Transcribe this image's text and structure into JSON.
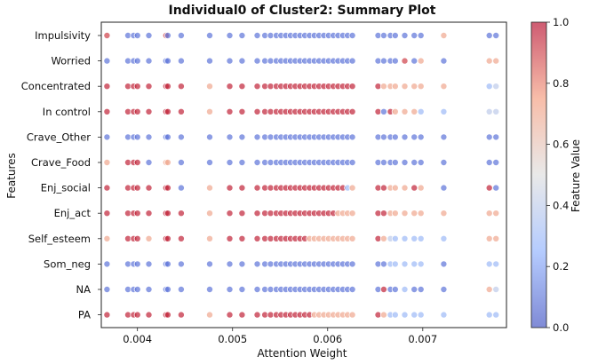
{
  "chart_data": {
    "type": "scatter",
    "title": "Individual0 of Cluster2: Summary Plot",
    "xlabel": "Attention Weight",
    "ylabel": "Features",
    "xlim": [
      0.00362,
      0.00788
    ],
    "xticks": [
      0.004,
      0.005,
      0.006,
      0.007
    ],
    "xtick_labels": [
      "0.004",
      "0.005",
      "0.006",
      "0.007"
    ],
    "colorbar": {
      "label": "Feature Value",
      "cmap": "coolwarm",
      "range": [
        0.0,
        1.0
      ],
      "ticks": [
        0.0,
        0.2,
        0.4,
        0.6,
        0.8,
        1.0
      ],
      "tick_labels": [
        "0.0",
        "0.2",
        "0.4",
        "0.6",
        "0.8",
        "1.0"
      ]
    },
    "features": [
      "Impulsivity",
      "Worried",
      "Concentrated",
      "In control",
      "Crave_Other",
      "Crave_Food",
      "Enj_social",
      "Enj_act",
      "Self_esteem",
      "Som_neg",
      "NA",
      "PA"
    ],
    "cluster_weights": [
      0.00368,
      0.0039,
      0.00396,
      0.004,
      0.00412,
      0.0043,
      0.00432,
      0.00446,
      0.00476,
      0.00497,
      0.0051,
      0.00526,
      0.00534,
      0.0054,
      0.00546,
      0.00551,
      0.00556,
      0.00561,
      0.00566,
      0.00571,
      0.00576,
      0.00581,
      0.00586,
      0.00591,
      0.00596,
      0.00601,
      0.00606,
      0.00611,
      0.00616,
      0.00621,
      0.00626,
      0.00653,
      0.00659,
      0.00666,
      0.00671,
      0.00681,
      0.00691,
      0.00698,
      0.00722,
      0.0077,
      0.00777
    ],
    "series": [
      {
        "feature": "Impulsivity",
        "values": [
          0.9,
          0.1,
          0.1,
          0.1,
          0.1,
          0.9,
          0.1,
          0.1,
          0.1,
          0.1,
          0.1,
          0.1,
          0.1,
          0.1,
          0.1,
          0.1,
          0.1,
          0.1,
          0.1,
          0.1,
          0.1,
          0.1,
          0.1,
          0.1,
          0.1,
          0.1,
          0.1,
          0.1,
          0.1,
          0.1,
          0.1,
          0.1,
          0.1,
          0.1,
          0.1,
          0.1,
          0.1,
          0.1,
          0.7,
          0.1,
          0.1
        ]
      },
      {
        "feature": "Worried",
        "values": [
          0.1,
          0.1,
          0.1,
          0.1,
          0.1,
          0.1,
          0.1,
          0.1,
          0.1,
          0.1,
          0.1,
          0.1,
          0.1,
          0.1,
          0.1,
          0.1,
          0.1,
          0.1,
          0.1,
          0.1,
          0.1,
          0.1,
          0.1,
          0.1,
          0.1,
          0.1,
          0.1,
          0.1,
          0.1,
          0.1,
          0.1,
          0.1,
          0.1,
          0.1,
          0.1,
          0.9,
          0.1,
          0.7,
          0.1,
          0.7,
          0.7
        ]
      },
      {
        "feature": "Concentrated",
        "values": [
          0.95,
          0.95,
          0.95,
          0.95,
          0.95,
          0.95,
          0.95,
          0.95,
          0.7,
          0.95,
          0.95,
          0.95,
          0.95,
          0.95,
          0.95,
          0.95,
          0.95,
          0.95,
          0.95,
          0.95,
          0.95,
          0.95,
          0.95,
          0.95,
          0.95,
          0.95,
          0.95,
          0.95,
          0.95,
          0.95,
          0.95,
          0.95,
          0.7,
          0.7,
          0.7,
          0.7,
          0.7,
          0.7,
          0.7,
          0.3,
          0.4
        ]
      },
      {
        "feature": "In control",
        "values": [
          0.95,
          0.95,
          0.95,
          0.95,
          0.95,
          0.95,
          0.95,
          0.95,
          0.7,
          0.95,
          0.95,
          0.95,
          0.95,
          0.95,
          0.95,
          0.95,
          0.95,
          0.95,
          0.95,
          0.95,
          0.95,
          0.95,
          0.95,
          0.95,
          0.95,
          0.95,
          0.95,
          0.95,
          0.95,
          0.95,
          0.95,
          0.95,
          0.1,
          0.95,
          0.7,
          0.7,
          0.7,
          0.3,
          0.3,
          0.4,
          0.4
        ]
      },
      {
        "feature": "Crave_Other",
        "values": [
          0.1,
          0.1,
          0.1,
          0.1,
          0.1,
          0.1,
          0.1,
          0.1,
          0.1,
          0.1,
          0.1,
          0.1,
          0.1,
          0.1,
          0.1,
          0.1,
          0.1,
          0.1,
          0.1,
          0.1,
          0.1,
          0.1,
          0.1,
          0.1,
          0.1,
          0.1,
          0.1,
          0.1,
          0.1,
          0.1,
          0.1,
          0.1,
          0.1,
          0.1,
          0.1,
          0.1,
          0.1,
          0.1,
          0.1,
          0.1,
          0.1
        ]
      },
      {
        "feature": "Crave_Food",
        "values": [
          0.7,
          0.95,
          0.95,
          0.95,
          0.1,
          0.7,
          0.7,
          0.1,
          0.1,
          0.1,
          0.1,
          0.1,
          0.1,
          0.1,
          0.1,
          0.1,
          0.1,
          0.1,
          0.1,
          0.1,
          0.1,
          0.1,
          0.1,
          0.1,
          0.1,
          0.1,
          0.1,
          0.1,
          0.1,
          0.1,
          0.1,
          0.1,
          0.1,
          0.1,
          0.1,
          0.1,
          0.1,
          0.1,
          0.1,
          0.1,
          0.1
        ]
      },
      {
        "feature": "Enj_social",
        "values": [
          0.95,
          0.95,
          0.95,
          0.95,
          0.95,
          0.95,
          0.95,
          0.1,
          0.7,
          0.95,
          0.95,
          0.95,
          0.95,
          0.95,
          0.95,
          0.95,
          0.95,
          0.95,
          0.95,
          0.95,
          0.95,
          0.95,
          0.95,
          0.95,
          0.95,
          0.95,
          0.95,
          0.95,
          0.95,
          0.3,
          0.7,
          0.95,
          0.95,
          0.7,
          0.7,
          0.7,
          0.95,
          0.7,
          0.1,
          0.95,
          0.1
        ]
      },
      {
        "feature": "Enj_act",
        "values": [
          0.95,
          0.95,
          0.95,
          0.95,
          0.95,
          0.95,
          0.95,
          0.95,
          0.7,
          0.95,
          0.95,
          0.95,
          0.95,
          0.95,
          0.95,
          0.95,
          0.95,
          0.95,
          0.95,
          0.95,
          0.95,
          0.95,
          0.95,
          0.95,
          0.95,
          0.95,
          0.95,
          0.7,
          0.7,
          0.7,
          0.7,
          0.95,
          0.95,
          0.7,
          0.7,
          0.7,
          0.7,
          0.7,
          0.7,
          0.7,
          0.7
        ]
      },
      {
        "feature": "Self_esteem",
        "values": [
          0.7,
          0.95,
          0.95,
          0.95,
          0.7,
          0.95,
          0.95,
          0.95,
          0.7,
          0.95,
          0.95,
          0.95,
          0.95,
          0.95,
          0.95,
          0.95,
          0.95,
          0.95,
          0.95,
          0.95,
          0.95,
          0.7,
          0.7,
          0.7,
          0.7,
          0.7,
          0.7,
          0.7,
          0.7,
          0.7,
          0.7,
          0.95,
          0.7,
          0.4,
          0.3,
          0.3,
          0.3,
          0.3,
          0.3,
          0.7,
          0.7
        ]
      },
      {
        "feature": "Som_neg",
        "values": [
          0.1,
          0.1,
          0.1,
          0.1,
          0.1,
          0.1,
          0.1,
          0.1,
          0.1,
          0.1,
          0.1,
          0.1,
          0.1,
          0.1,
          0.1,
          0.1,
          0.1,
          0.1,
          0.1,
          0.1,
          0.1,
          0.1,
          0.1,
          0.1,
          0.1,
          0.1,
          0.1,
          0.1,
          0.1,
          0.1,
          0.1,
          0.1,
          0.1,
          0.3,
          0.3,
          0.3,
          0.3,
          0.3,
          0.1,
          0.3,
          0.3
        ]
      },
      {
        "feature": "NA",
        "values": [
          0.1,
          0.1,
          0.1,
          0.1,
          0.1,
          0.1,
          0.1,
          0.1,
          0.1,
          0.1,
          0.1,
          0.1,
          0.1,
          0.1,
          0.1,
          0.1,
          0.1,
          0.1,
          0.1,
          0.1,
          0.1,
          0.1,
          0.1,
          0.1,
          0.1,
          0.1,
          0.1,
          0.1,
          0.1,
          0.1,
          0.1,
          0.1,
          0.95,
          0.1,
          0.1,
          0.3,
          0.1,
          0.1,
          0.1,
          0.7,
          0.4
        ]
      },
      {
        "feature": "PA",
        "values": [
          0.95,
          0.95,
          0.95,
          0.95,
          0.95,
          0.95,
          0.95,
          0.95,
          0.7,
          0.95,
          0.95,
          0.95,
          0.95,
          0.95,
          0.95,
          0.95,
          0.95,
          0.95,
          0.95,
          0.95,
          0.95,
          0.95,
          0.7,
          0.7,
          0.7,
          0.7,
          0.7,
          0.7,
          0.7,
          0.7,
          0.7,
          0.95,
          0.7,
          0.3,
          0.3,
          0.3,
          0.3,
          0.3,
          0.3,
          0.3,
          0.3
        ]
      }
    ]
  }
}
